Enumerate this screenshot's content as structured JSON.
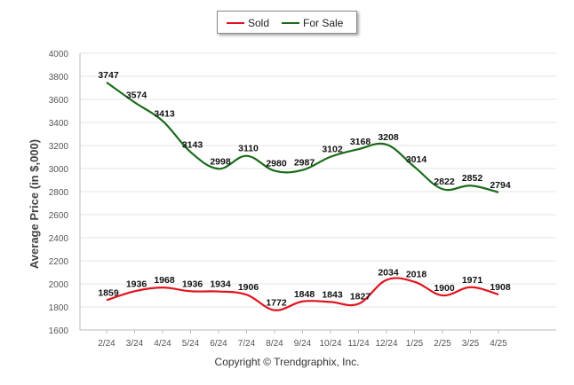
{
  "legend": {
    "sold": "Sold",
    "for_sale": "For Sale"
  },
  "copyright": "Copyright © Trendgraphix, Inc.",
  "chart_data": {
    "type": "line",
    "ylabel": "Average Price (in $,000)",
    "xlabel": "",
    "categories": [
      "2/24",
      "3/24",
      "4/24",
      "5/24",
      "6/24",
      "7/24",
      "8/24",
      "9/24",
      "10/24",
      "11/24",
      "12/24",
      "1/25",
      "2/25",
      "3/25",
      "4/25"
    ],
    "yticks": [
      1600,
      1800,
      2000,
      2200,
      2400,
      2600,
      2800,
      3000,
      3200,
      3400,
      3600,
      3800,
      4000
    ],
    "ylim": [
      1600,
      4000
    ],
    "grid": true,
    "legend_position": "top-center",
    "series": [
      {
        "name": "Sold",
        "color": "#e0141e",
        "values": [
          1859,
          1936,
          1968,
          1936,
          1934,
          1906,
          1772,
          1848,
          1843,
          1827,
          2034,
          2018,
          1900,
          1971,
          1908
        ]
      },
      {
        "name": "For Sale",
        "color": "#1a6b1a",
        "values": [
          3747,
          3574,
          3413,
          3143,
          2998,
          3110,
          2980,
          2987,
          3102,
          3168,
          3208,
          3014,
          2822,
          2852,
          2794
        ]
      }
    ]
  }
}
